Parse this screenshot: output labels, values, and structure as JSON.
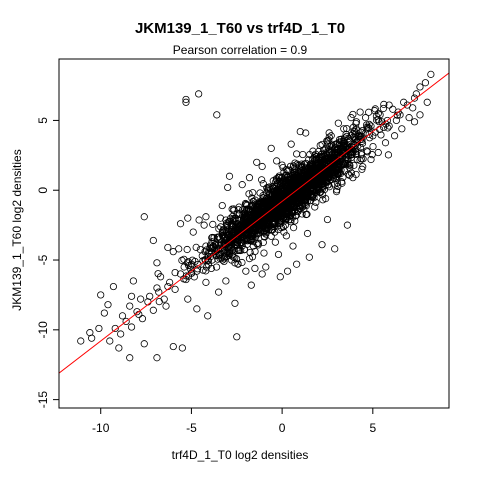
{
  "chart_data": {
    "type": "scatter",
    "title": "JKM139_1_T60 vs trf4D_1_T0",
    "subtitle": "Pearson correlation =  0.9",
    "xlabel": "trf4D_1_T0 log2 densities",
    "ylabel": "JKM139_1_T60 log2 densities",
    "xlim": [
      -12.3,
      9.2
    ],
    "ylim": [
      -15.6,
      9.4
    ],
    "xticks": [
      -10,
      -5,
      0,
      5
    ],
    "yticks": [
      -15,
      -10,
      -5,
      0,
      5
    ],
    "x_tick_labels": [
      "-10",
      "-5",
      "0",
      "5"
    ],
    "y_tick_labels": [
      "-15",
      "-10",
      "-5",
      "0",
      "5"
    ],
    "grid": false,
    "legend": "none",
    "colors": {
      "points": "#000000",
      "fit_line": "#ff0000"
    },
    "fit_line": {
      "slope": 1.0,
      "intercept": -0.8
    },
    "pearson_r": 0.9,
    "points": [
      [
        8.2,
        8.3
      ],
      [
        7.9,
        7.7
      ],
      [
        7.6,
        7.4
      ],
      [
        7.3,
        6.6
      ],
      [
        6.9,
        6.1
      ],
      [
        6.7,
        6.3
      ],
      [
        6.4,
        5.6
      ],
      [
        6.1,
        5.8
      ],
      [
        7.0,
        5.2
      ],
      [
        5.8,
        5.0
      ],
      [
        5.5,
        4.9
      ],
      [
        5.2,
        5.3
      ],
      [
        4.9,
        4.6
      ],
      [
        4.6,
        4.1
      ],
      [
        4.3,
        3.9
      ],
      [
        4.0,
        4.2
      ],
      [
        3.7,
        3.1
      ],
      [
        3.4,
        3.5
      ],
      [
        3.1,
        2.9
      ],
      [
        2.8,
        2.6
      ],
      [
        2.5,
        3.3
      ],
      [
        2.2,
        1.9
      ],
      [
        1.9,
        2.4
      ],
      [
        1.6,
        1.2
      ],
      [
        1.3,
        0.6
      ],
      [
        1.0,
        1.1
      ],
      [
        0.7,
        0.2
      ],
      [
        0.4,
        -0.1
      ],
      [
        0.1,
        -0.6
      ],
      [
        -0.2,
        -0.2
      ],
      [
        -0.5,
        -1.3
      ],
      [
        -0.8,
        -0.9
      ],
      [
        -1.1,
        -1.8
      ],
      [
        -1.4,
        -1.5
      ],
      [
        -1.7,
        -2.4
      ],
      [
        -2.0,
        -2.1
      ],
      [
        -2.3,
        -3.2
      ],
      [
        -2.6,
        -2.8
      ],
      [
        -2.9,
        -3.7
      ],
      [
        -3.2,
        -3.3
      ],
      [
        -3.5,
        -4.5
      ],
      [
        -3.8,
        -4.0
      ],
      [
        -4.1,
        -5.0
      ],
      [
        -4.4,
        -4.7
      ],
      [
        -4.7,
        -5.8
      ],
      [
        -5.0,
        -5.3
      ],
      [
        -5.3,
        -6.4
      ],
      [
        -5.6,
        -6.0
      ],
      [
        -5.9,
        -7.1
      ],
      [
        -6.2,
        -6.6
      ],
      [
        -6.5,
        -7.8
      ],
      [
        -6.8,
        -7.3
      ],
      [
        -7.1,
        -8.6
      ],
      [
        -7.4,
        -8.0
      ],
      [
        -7.7,
        -9.2
      ],
      [
        -8.0,
        -8.7
      ],
      [
        -8.3,
        -9.8
      ],
      [
        -8.6,
        -9.4
      ],
      [
        -8.9,
        -10.3
      ],
      [
        -9.2,
        -9.9
      ],
      [
        -9.5,
        -10.8
      ],
      [
        -9.8,
        -8.8
      ],
      [
        -10.1,
        -9.9
      ],
      [
        -10.5,
        -10.6
      ],
      [
        -11.1,
        -10.8
      ],
      [
        -10.6,
        -10.2
      ],
      [
        -9.0,
        -11.3
      ],
      [
        -8.4,
        -12.0
      ],
      [
        -7.6,
        -11.0
      ],
      [
        -6.9,
        -12.0
      ],
      [
        -6.0,
        -11.2
      ],
      [
        -5.5,
        -11.3
      ],
      [
        -4.7,
        -8.5
      ],
      [
        -4.1,
        -9.0
      ],
      [
        -3.5,
        -7.3
      ],
      [
        -2.6,
        -8.1
      ],
      [
        -2.5,
        -10.5
      ],
      [
        -3.1,
        -6.5
      ],
      [
        -1.7,
        -6.8
      ],
      [
        -1.5,
        -5.6
      ],
      [
        -0.9,
        -5.5
      ],
      [
        -0.1,
        -6.2
      ],
      [
        0.3,
        -5.8
      ],
      [
        0.8,
        -5.3
      ],
      [
        1.5,
        -4.8
      ],
      [
        2.2,
        -3.9
      ],
      [
        2.9,
        -4.2
      ],
      [
        3.6,
        -2.5
      ],
      [
        -5.6,
        -2.4
      ],
      [
        -5.7,
        -4.2
      ],
      [
        -4.2,
        -1.9
      ],
      [
        -3.3,
        -1.1
      ],
      [
        -2.9,
        1.0
      ],
      [
        -2.2,
        0.4
      ],
      [
        -1.1,
        1.7
      ],
      [
        -0.6,
        3.0
      ],
      [
        -0.3,
        2.1
      ],
      [
        0.5,
        3.3
      ],
      [
        1.0,
        4.2
      ],
      [
        1.3,
        4.1
      ],
      [
        2.1,
        3.2
      ],
      [
        3.1,
        4.8
      ],
      [
        3.8,
        5.2
      ],
      [
        4.3,
        5.6
      ],
      [
        5.1,
        5.7
      ],
      [
        -5.3,
        6.3
      ],
      [
        -5.3,
        6.5
      ],
      [
        -4.6,
        6.9
      ],
      [
        -3.6,
        5.4
      ],
      [
        -7.6,
        -1.9
      ],
      [
        -7.1,
        -3.6
      ],
      [
        -6.3,
        -4.1
      ],
      [
        -6.0,
        -4.4
      ],
      [
        -6.7,
        -6.2
      ],
      [
        -6.9,
        -5.2
      ],
      [
        -9.3,
        -6.9
      ],
      [
        -10.0,
        -7.5
      ],
      [
        -8.2,
        -6.5
      ],
      [
        -9.6,
        -8.2
      ],
      [
        -8.3,
        -7.6
      ],
      [
        -7.9,
        -8.9
      ],
      [
        -6.4,
        -8.3
      ],
      [
        -5.2,
        -7.8
      ],
      [
        -4.2,
        -6.6
      ],
      [
        -3.9,
        -5.6
      ],
      [
        -3.2,
        -5.1
      ],
      [
        -2.9,
        -4.5
      ],
      [
        -2.4,
        -4.3
      ],
      [
        -2.1,
        -3.6
      ],
      [
        -1.8,
        -4.9
      ],
      [
        -1.3,
        -3.8
      ],
      [
        -0.6,
        -3.3
      ],
      [
        0.1,
        -3.0
      ],
      [
        0.7,
        -2.2
      ],
      [
        1.1,
        -1.7
      ],
      [
        1.8,
        -1.2
      ],
      [
        2.4,
        -0.6
      ],
      [
        3.0,
        -0.1
      ],
      [
        3.3,
        0.5
      ],
      [
        3.9,
        0.9
      ],
      [
        4.4,
        1.5
      ],
      [
        4.9,
        2.2
      ],
      [
        5.3,
        2.7
      ],
      [
        5.7,
        3.4
      ],
      [
        6.2,
        3.9
      ],
      [
        6.6,
        4.4
      ],
      [
        7.2,
        5.9
      ],
      [
        8.0,
        6.3
      ],
      [
        7.4,
        6.9
      ],
      [
        5.9,
        6.1
      ],
      [
        4.8,
        4.0
      ],
      [
        3.6,
        3.2
      ],
      [
        2.7,
        2.2
      ],
      [
        2.0,
        1.6
      ],
      [
        1.5,
        0.6
      ],
      [
        0.9,
        0.0
      ],
      [
        0.3,
        -0.8
      ],
      [
        -0.4,
        -1.0
      ],
      [
        -0.9,
        -1.6
      ],
      [
        -1.5,
        -2.0
      ],
      [
        -2.1,
        -2.6
      ],
      [
        -2.7,
        -3.0
      ],
      [
        -3.1,
        -3.9
      ],
      [
        -3.6,
        -4.3
      ],
      [
        -4.2,
        -4.0
      ],
      [
        -4.8,
        -5.1
      ],
      [
        -5.4,
        -5.5
      ],
      [
        -5.9,
        -5.9
      ],
      [
        -6.3,
        -6.9
      ],
      [
        -6.9,
        -7.0
      ],
      [
        -7.3,
        -7.6
      ],
      [
        -7.8,
        -7.8
      ],
      [
        -8.4,
        -8.3
      ],
      [
        -8.8,
        -9.0
      ],
      [
        -4.3,
        -2.5
      ],
      [
        -3.4,
        -2.0
      ],
      [
        -2.4,
        -1.4
      ],
      [
        -1.6,
        -0.8
      ],
      [
        -0.7,
        -0.3
      ],
      [
        0.2,
        0.4
      ],
      [
        0.9,
        0.9
      ],
      [
        1.6,
        1.4
      ],
      [
        2.3,
        2.1
      ],
      [
        3.0,
        2.5
      ],
      [
        3.7,
        2.9
      ],
      [
        4.4,
        3.5
      ],
      [
        5.0,
        3.9
      ],
      [
        5.6,
        4.5
      ],
      [
        6.3,
        5.0
      ],
      [
        -2.0,
        -5.8
      ],
      [
        -1.1,
        -6.0
      ],
      [
        -1.0,
        -4.5
      ],
      [
        0.6,
        -4.0
      ],
      [
        1.4,
        -3.1
      ],
      [
        2.5,
        -2.1
      ],
      [
        -0.2,
        -4.6
      ],
      [
        -4.9,
        -3.0
      ],
      [
        -5.2,
        -2.0
      ],
      [
        -3.0,
        0.2
      ],
      [
        -1.8,
        0.9
      ],
      [
        -1.4,
        2.0
      ],
      [
        0.0,
        1.8
      ],
      [
        0.8,
        2.6
      ],
      [
        1.7,
        2.8
      ],
      [
        2.6,
        3.8
      ],
      [
        3.4,
        4.4
      ],
      [
        4.1,
        4.9
      ],
      [
        4.6,
        5.2
      ],
      [
        5.4,
        5.4
      ],
      [
        5.9,
        4.6
      ],
      [
        6.5,
        5.4
      ],
      [
        7.3,
        4.9
      ],
      [
        7.6,
        5.4
      ]
    ],
    "dense_band": {
      "count": 2200,
      "x_range": [
        -5.0,
        6.0
      ],
      "spread": 1.2
    }
  }
}
